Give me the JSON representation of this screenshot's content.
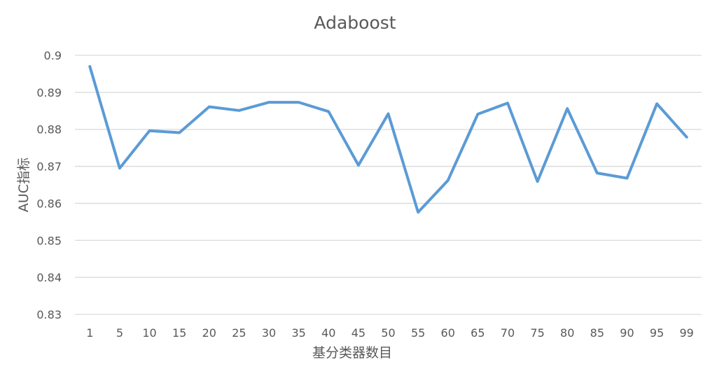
{
  "chart_data": {
    "type": "line",
    "title": "Adaboost",
    "xlabel": "基分类器数目",
    "ylabel": "AUC指标",
    "categories": [
      "1",
      "5",
      "10",
      "15",
      "20",
      "25",
      "30",
      "35",
      "40",
      "45",
      "50",
      "55",
      "60",
      "65",
      "70",
      "75",
      "80",
      "85",
      "90",
      "95",
      "99"
    ],
    "series": [
      {
        "values": [
          0.897,
          0.8695,
          0.8796,
          0.8791,
          0.8861,
          0.8851,
          0.8873,
          0.8873,
          0.8848,
          0.8703,
          0.8842,
          0.8576,
          0.8662,
          0.8841,
          0.8871,
          0.8659,
          0.8856,
          0.8682,
          0.8668,
          0.8869,
          0.8779
        ],
        "color": "#5b9bd5"
      }
    ],
    "ylim": [
      0.83,
      0.9
    ],
    "yticks": [
      "0.83",
      "0.84",
      "0.85",
      "0.86",
      "0.87",
      "0.88",
      "0.89",
      "0.9"
    ],
    "grid": true,
    "legend": "none"
  }
}
